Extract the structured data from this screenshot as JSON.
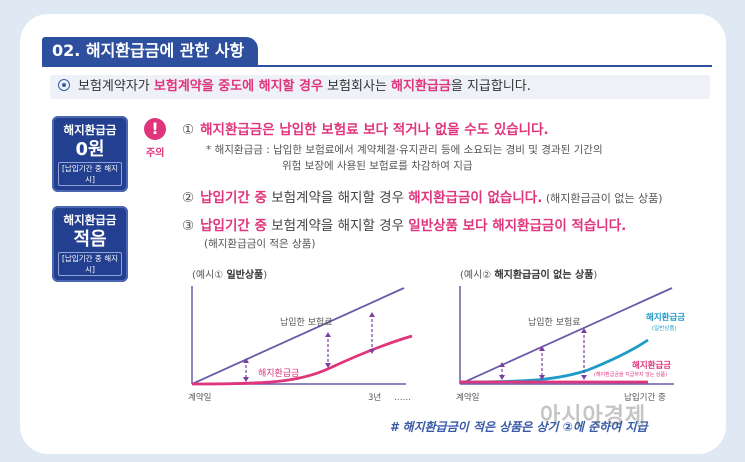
{
  "section": {
    "title": "02. 해지환급금에 관한 사항"
  },
  "intro": {
    "part1": "보험계약자가 ",
    "highlight1": "보험계약을 중도에 해지할 경우",
    "part2": " 보험회사는 ",
    "highlight2": "해지환급금",
    "part3": "을 지급합니다."
  },
  "badges": [
    {
      "title": "해지환급금",
      "value": "0원",
      "note": "[납입기간 중 해지시]"
    },
    {
      "title": "해지환급금",
      "value": "적음",
      "note": "[납입기간 중 해지시]"
    }
  ],
  "warning": {
    "icon": "exclamation-icon",
    "label": "주의"
  },
  "items": {
    "i1": {
      "num": "①",
      "text": "해지환급금은 납입한 보험료 보다 적거나 없을 수도 있습니다."
    },
    "note1_line1": "* 해지환급금 : 납입한 보험료에서 계약체결·유지관리 등에 소요되는 경비 및 경과된 기간의",
    "note1_line2": "위험 보장에 사용된 보험료를 차감하여 지급",
    "i2": {
      "num": "②",
      "pink1": "납입기간 중",
      "mid": " 보험계약을 해지할 경우 ",
      "pink2": "해지환급금이 없습니다.",
      "small": " (해지환급금이 없는 상품)"
    },
    "i3": {
      "num": "③",
      "pink1": "납입기간 중",
      "mid": " 보험계약을 해지할 경우 ",
      "pink2": "일반상품 보다 해지환급금이 적습니다."
    },
    "note3": "(해지환급금이 적은 상품)"
  },
  "charts": {
    "left": {
      "title_prefix": "(예시① ",
      "title_bold": "일반상품",
      "title_suffix": ")",
      "premium_label": "납입한 보험료",
      "refund_label": "해지환급금",
      "x_start": "계약일",
      "x_mid": "3년",
      "x_dots": "……"
    },
    "right": {
      "title_prefix": "(예시② ",
      "title_bold": "해지환급금이 없는 상품",
      "title_suffix": ")",
      "premium_label": "납입한 보험료",
      "general_label": "해지환급금",
      "general_sub": "(일반상품)",
      "norefund_label": "해지환급금",
      "norefund_sub": "(해지환급금을 지급하지 않는 상품)",
      "x_start": "계약일",
      "x_mid": "납입기간 중"
    }
  },
  "footer": {
    "hashtag": "# 해지환급금이 적은 상품은 상기 ②에 준하여 지급"
  },
  "watermark": "아시아경제",
  "colors": {
    "navy": "#2d4f9e",
    "pink": "#e0357c",
    "purple": "#6b5aa8",
    "teal": "#1f9bc8"
  }
}
